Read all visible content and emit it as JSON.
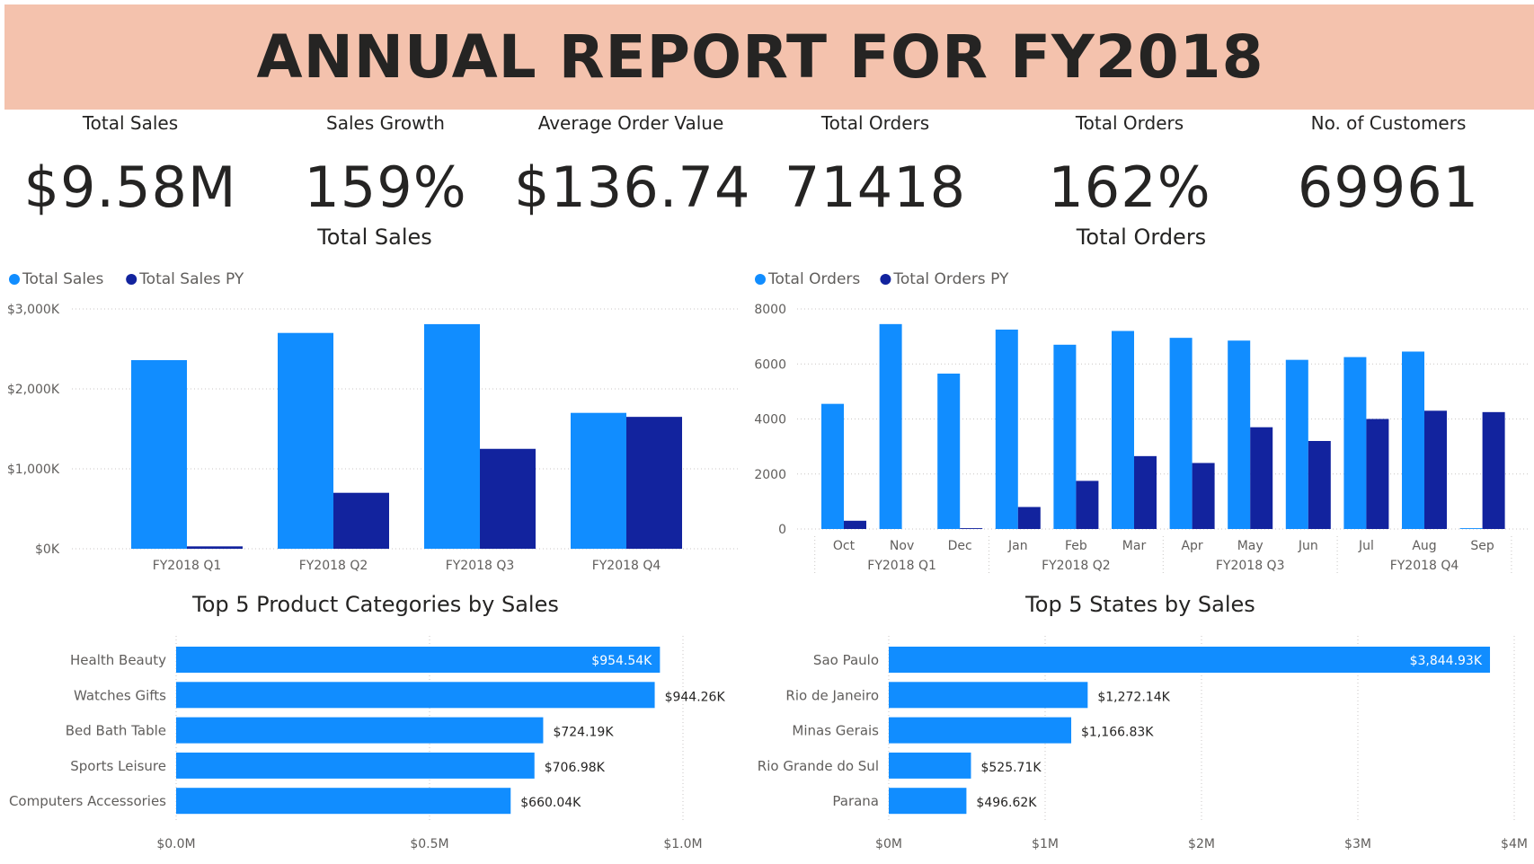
{
  "header": {
    "title": "ANNUAL REPORT FOR FY2018"
  },
  "kpis": [
    {
      "label": "Total Sales",
      "value": "$9.58M"
    },
    {
      "label": "Sales Growth",
      "value": "159%"
    },
    {
      "label": "Average Order Value",
      "value": "$136.74"
    },
    {
      "label": "Total Orders",
      "value": "71418"
    },
    {
      "label": "Total Orders",
      "value": "162%"
    },
    {
      "label": "No. of Customers",
      "value": "69961"
    }
  ],
  "colors": {
    "current": "#118dff",
    "previous": "#12239e",
    "header_bg": "#f4c2ad"
  },
  "chart_data": [
    {
      "type": "bar",
      "title": "Total Sales",
      "categories": [
        "FY2018 Q1",
        "FY2018 Q2",
        "FY2018 Q3",
        "FY2018 Q4"
      ],
      "series": [
        {
          "name": "Total Sales",
          "values": [
            2360,
            2700,
            2810,
            1700
          ]
        },
        {
          "name": "Total Sales PY",
          "values": [
            30,
            700,
            1250,
            1650
          ]
        }
      ],
      "yticks": [
        "$0K",
        "$1,000K",
        "$2,000K",
        "$3,000K"
      ],
      "ylim": [
        0,
        3000
      ],
      "legend": "top-left",
      "grid": true
    },
    {
      "type": "bar",
      "title": "Total Orders",
      "categories": [
        "Oct",
        "Nov",
        "Dec",
        "Jan",
        "Feb",
        "Mar",
        "Apr",
        "May",
        "Jun",
        "Jul",
        "Aug",
        "Sep"
      ],
      "groups": [
        "FY2018 Q1",
        "FY2018 Q2",
        "FY2018 Q3",
        "FY2018 Q4"
      ],
      "series": [
        {
          "name": "Total Orders",
          "values": [
            4550,
            7450,
            5650,
            7250,
            6700,
            7200,
            6950,
            6850,
            6150,
            6250,
            6450,
            30
          ]
        },
        {
          "name": "Total Orders PY",
          "values": [
            300,
            0,
            30,
            800,
            1750,
            2650,
            2400,
            3700,
            3200,
            4000,
            4300,
            4250
          ]
        }
      ],
      "yticks": [
        "0",
        "2000",
        "4000",
        "6000",
        "8000"
      ],
      "ylim": [
        0,
        8000
      ],
      "legend": "top-left",
      "grid": true
    },
    {
      "type": "bar",
      "orientation": "horizontal",
      "title": "Top 5 Product Categories by Sales",
      "categories": [
        "Health Beauty",
        "Watches Gifts",
        "Bed Bath Table",
        "Sports Leisure",
        "Computers Accessories"
      ],
      "values": [
        954.54,
        944.26,
        724.19,
        706.98,
        660.04
      ],
      "labels": [
        "$954.54K",
        "$944.26K",
        "$724.19K",
        "$706.98K",
        "$660.04K"
      ],
      "xticks": [
        "$0.0M",
        "$0.5M",
        "$1.0M"
      ],
      "xlim": [
        0,
        1000
      ]
    },
    {
      "type": "bar",
      "orientation": "horizontal",
      "title": "Top 5 States by Sales",
      "categories": [
        "Sao Paulo",
        "Rio de Janeiro",
        "Minas Gerais",
        "Rio Grande do Sul",
        "Parana"
      ],
      "values": [
        3844.93,
        1272.14,
        1166.83,
        525.71,
        496.62
      ],
      "labels": [
        "$3,844.93K",
        "$1,272.14K",
        "$1,166.83K",
        "$525.71K",
        "$496.62K"
      ],
      "xticks": [
        "$0M",
        "$1M",
        "$2M",
        "$3M",
        "$4M"
      ],
      "xlim": [
        0,
        4000
      ]
    }
  ]
}
